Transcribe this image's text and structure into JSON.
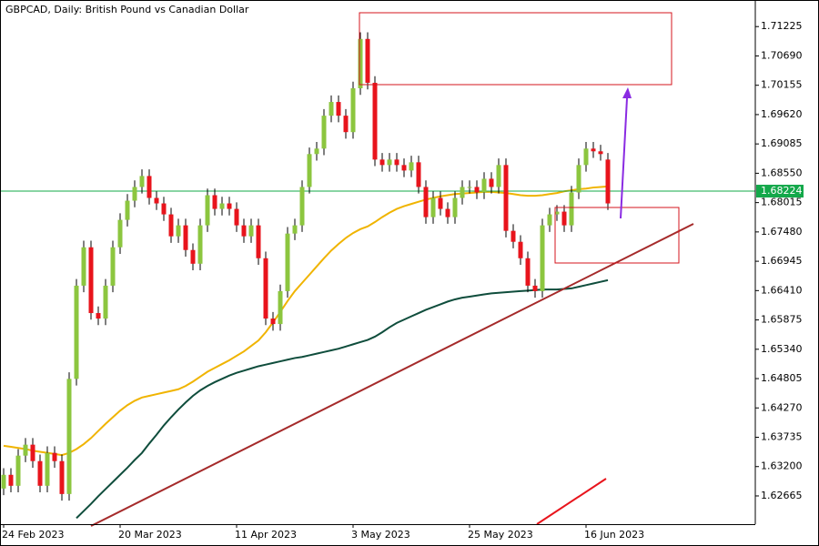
{
  "chart_data": {
    "type": "candlestick",
    "title": "GBPCAD, Daily:  British Pound vs Canadian Dollar",
    "categories": [
      "24 Feb 2023",
      null,
      null,
      null,
      null,
      null,
      null,
      null,
      null,
      null,
      null,
      null,
      null,
      null,
      null,
      null,
      "20 Mar 2023",
      null,
      null,
      null,
      null,
      null,
      null,
      null,
      null,
      null,
      null,
      null,
      null,
      null,
      null,
      null,
      "11 Apr 2023",
      null,
      null,
      null,
      null,
      null,
      null,
      null,
      null,
      null,
      null,
      null,
      null,
      null,
      null,
      null,
      "3 May 2023",
      null,
      null,
      null,
      null,
      null,
      null,
      null,
      null,
      null,
      null,
      null,
      null,
      null,
      null,
      null,
      "25 May 2023",
      null,
      null,
      null,
      null,
      null,
      null,
      null,
      null,
      null,
      null,
      null,
      null,
      null,
      null,
      null,
      "16 Jun 2023",
      null,
      null,
      null
    ],
    "open": [
      1.628,
      1.6305,
      1.6285,
      1.634,
      1.636,
      1.633,
      1.6285,
      1.6345,
      1.633,
      1.627,
      1.648,
      1.665,
      1.672,
      1.66,
      1.659,
      1.665,
      1.672,
      1.677,
      1.6805,
      1.683,
      1.685,
      1.681,
      1.68,
      1.678,
      1.674,
      1.676,
      1.6715,
      1.669,
      1.676,
      1.6815,
      1.679,
      1.68,
      1.679,
      1.676,
      1.674,
      1.676,
      1.67,
      1.659,
      1.658,
      1.664,
      1.6745,
      1.676,
      1.683,
      1.689,
      1.69,
      1.696,
      1.6985,
      1.696,
      1.693,
      1.701,
      1.71,
      1.702,
      1.688,
      1.687,
      1.688,
      1.687,
      1.686,
      1.6875,
      1.683,
      1.6775,
      1.681,
      1.679,
      1.6775,
      1.681,
      1.683,
      1.683,
      1.682,
      1.6845,
      1.683,
      1.687,
      1.675,
      1.673,
      1.67,
      1.665,
      1.664,
      1.676,
      1.678,
      1.6785,
      1.676,
      1.682,
      1.687,
      1.69,
      1.6895,
      1.688
    ],
    "high": [
      1.6317,
      1.6317,
      1.6352,
      1.6372,
      1.6372,
      1.6342,
      1.6357,
      1.6357,
      1.6342,
      1.6492,
      1.6662,
      1.6732,
      1.6732,
      1.6612,
      1.6662,
      1.6732,
      1.6782,
      1.6817,
      1.6842,
      1.6862,
      1.6862,
      1.6822,
      1.6812,
      1.6792,
      1.6772,
      1.6772,
      1.6727,
      1.6772,
      1.6827,
      1.6827,
      1.6812,
      1.6812,
      1.6802,
      1.6772,
      1.6772,
      1.6772,
      1.6712,
      1.6602,
      1.6652,
      1.6757,
      1.6772,
      1.6842,
      1.6902,
      1.6912,
      1.6972,
      1.6997,
      1.6997,
      1.6972,
      1.7022,
      1.7112,
      1.7112,
      1.7032,
      1.6892,
      1.6892,
      1.6892,
      1.6882,
      1.6887,
      1.6887,
      1.6842,
      1.6822,
      1.6822,
      1.6802,
      1.6822,
      1.6842,
      1.6842,
      1.6842,
      1.6857,
      1.6857,
      1.6882,
      1.6882,
      1.6762,
      1.6742,
      1.6712,
      1.6662,
      1.6772,
      1.6792,
      1.6797,
      1.6797,
      1.6832,
      1.6882,
      1.6912,
      1.6912,
      1.6907,
      1.6892
    ],
    "low": [
      1.6268,
      1.6273,
      1.6273,
      1.6328,
      1.6318,
      1.6273,
      1.6273,
      1.6318,
      1.6258,
      1.6258,
      1.6468,
      1.6638,
      1.6588,
      1.6578,
      1.6578,
      1.6638,
      1.6708,
      1.6758,
      1.6793,
      1.6818,
      1.6798,
      1.6788,
      1.6768,
      1.6728,
      1.6728,
      1.6703,
      1.6678,
      1.6678,
      1.6748,
      1.6778,
      1.6778,
      1.6778,
      1.6748,
      1.6728,
      1.6728,
      1.6688,
      1.6578,
      1.6568,
      1.6568,
      1.6628,
      1.6733,
      1.6748,
      1.6818,
      1.6878,
      1.6888,
      1.6948,
      1.6948,
      1.6918,
      1.6918,
      1.6998,
      1.7008,
      1.6868,
      1.6858,
      1.6858,
      1.6858,
      1.6848,
      1.6848,
      1.6818,
      1.6763,
      1.6763,
      1.6778,
      1.6763,
      1.6763,
      1.6798,
      1.6818,
      1.6808,
      1.6808,
      1.6818,
      1.6818,
      1.6738,
      1.6718,
      1.6688,
      1.6638,
      1.6628,
      1.6628,
      1.6748,
      1.6768,
      1.6748,
      1.6748,
      1.6808,
      1.6858,
      1.6883,
      1.6878,
      1.6788
    ],
    "close": [
      1.6305,
      1.6285,
      1.634,
      1.636,
      1.633,
      1.6285,
      1.6345,
      1.633,
      1.627,
      1.648,
      1.665,
      1.672,
      1.66,
      1.659,
      1.665,
      1.672,
      1.677,
      1.6805,
      1.683,
      1.685,
      1.681,
      1.68,
      1.678,
      1.674,
      1.676,
      1.6715,
      1.669,
      1.676,
      1.6815,
      1.679,
      1.68,
      1.679,
      1.676,
      1.674,
      1.676,
      1.67,
      1.659,
      1.658,
      1.664,
      1.6745,
      1.676,
      1.683,
      1.689,
      1.69,
      1.696,
      1.6985,
      1.696,
      1.693,
      1.701,
      1.71,
      1.702,
      1.688,
      1.687,
      1.688,
      1.687,
      1.686,
      1.6875,
      1.683,
      1.6775,
      1.681,
      1.679,
      1.6775,
      1.681,
      1.683,
      1.683,
      1.682,
      1.6845,
      1.683,
      1.687,
      1.675,
      1.673,
      1.67,
      1.665,
      1.664,
      1.676,
      1.678,
      1.6785,
      1.676,
      1.682,
      1.687,
      1.69,
      1.6895,
      1.689,
      1.68
    ],
    "up_color": "#8cc63f",
    "down_color": "#e8141c",
    "lines": [
      {
        "color": "#f0b400",
        "values": [
          1.6358,
          1.6356,
          1.6354,
          1.6352,
          1.6349,
          1.6347,
          1.6345,
          1.6343,
          1.6341,
          1.6345,
          1.6352,
          1.6361,
          1.6372,
          1.6385,
          1.6398,
          1.641,
          1.6422,
          1.6432,
          1.644,
          1.6446,
          1.6449,
          1.6452,
          1.6455,
          1.6458,
          1.6461,
          1.6467,
          1.6475,
          1.6484,
          1.6493,
          1.65,
          1.6507,
          1.6514,
          1.6522,
          1.653,
          1.654,
          1.655,
          1.6565,
          1.6583,
          1.6602,
          1.6622,
          1.664,
          1.6655,
          1.667,
          1.6685,
          1.67,
          1.6714,
          1.6726,
          1.6737,
          1.6746,
          1.6753,
          1.6758,
          1.6766,
          1.6775,
          1.6783,
          1.679,
          1.6795,
          1.6799,
          1.6803,
          1.6807,
          1.681,
          1.6813,
          1.6815,
          1.6817,
          1.6818,
          1.6819,
          1.682,
          1.6821,
          1.6821,
          1.682,
          1.6819,
          1.6817,
          1.6815,
          1.6814,
          1.6814,
          1.6815,
          1.6817,
          1.6819,
          1.6822,
          1.6824,
          1.6826,
          1.6827,
          1.6829,
          1.683,
          1.6831
        ]
      },
      {
        "color": "#0f4d3c",
        "values": [
          null,
          null,
          null,
          null,
          null,
          null,
          null,
          null,
          null,
          null,
          1.6226,
          1.6239,
          1.6252,
          1.6266,
          1.6279,
          1.6292,
          1.6305,
          1.6318,
          1.6332,
          1.6345,
          1.6362,
          1.6378,
          1.6395,
          1.641,
          1.6424,
          1.6437,
          1.6449,
          1.6459,
          1.6467,
          1.6474,
          1.648,
          1.6486,
          1.6491,
          1.6495,
          1.6499,
          1.6503,
          1.6506,
          1.6509,
          1.6512,
          1.6515,
          1.6518,
          1.652,
          1.6523,
          1.6526,
          1.6529,
          1.6532,
          1.6535,
          1.6539,
          1.6543,
          1.6547,
          1.6551,
          1.6557,
          1.6565,
          1.6574,
          1.6582,
          1.6588,
          1.6594,
          1.66,
          1.6606,
          1.6611,
          1.6616,
          1.6621,
          1.6625,
          1.6628,
          1.663,
          1.6632,
          1.6634,
          1.6636,
          1.6637,
          1.6638,
          1.6639,
          1.664,
          1.6641,
          1.6642,
          1.6643,
          1.6643,
          1.6643,
          1.6644,
          1.6645,
          1.6648,
          1.6651,
          1.6654,
          1.6657,
          1.666
        ]
      }
    ],
    "current_price": 1.68224,
    "current_price_color": "#13a84a",
    "ylim": [
      1.6215,
      1.7171
    ],
    "yticks": [
      1.71225,
      {
        "value": 1.7069,
        "label": "1.70690"
      },
      1.70155,
      {
        "value": 1.6962,
        "label": "1.69620"
      },
      1.69085,
      {
        "value": 1.6855,
        "label": "1.68550"
      },
      1.68015,
      {
        "value": 1.6748,
        "label": "1.67480"
      },
      1.66945,
      {
        "value": 1.6641,
        "label": "1.66410"
      },
      1.65875,
      {
        "value": 1.6534,
        "label": "1.65340"
      },
      1.64805,
      {
        "value": 1.6427,
        "label": "1.64270"
      },
      1.63735,
      {
        "value": 1.632,
        "label": "1.63200"
      },
      1.62665
    ]
  }
}
